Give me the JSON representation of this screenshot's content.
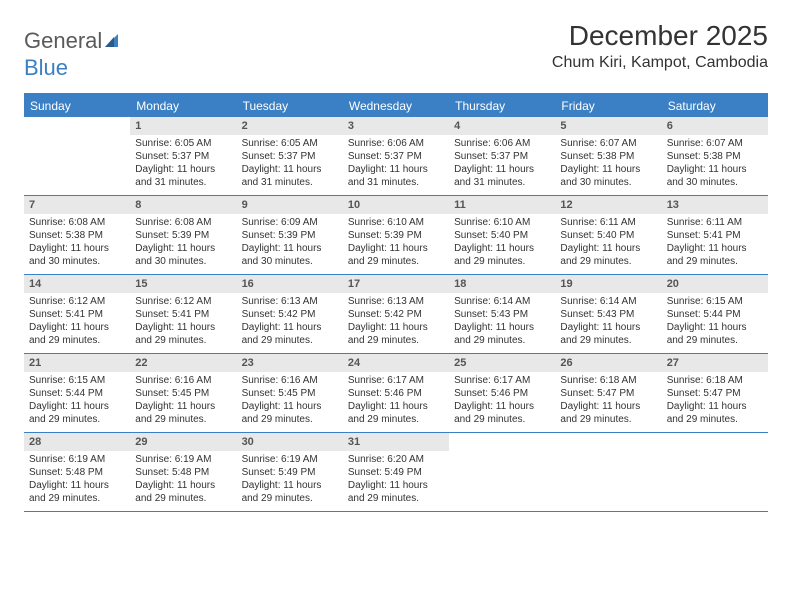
{
  "logo": {
    "text1": "General",
    "text2": "Blue"
  },
  "title": "December 2025",
  "location": "Chum Kiri, Kampot, Cambodia",
  "colors": {
    "accent": "#3b7fc4",
    "header_bg": "#3b7fc4",
    "daynum_bg": "#e8e8e8",
    "text": "#333333",
    "logo_gray": "#5a5a5a"
  },
  "day_names": [
    "Sunday",
    "Monday",
    "Tuesday",
    "Wednesday",
    "Thursday",
    "Friday",
    "Saturday"
  ],
  "first_weekday": 1,
  "num_days": 31,
  "days": {
    "1": {
      "sunrise": "6:05 AM",
      "sunset": "5:37 PM",
      "daylight": "11 hours and 31 minutes."
    },
    "2": {
      "sunrise": "6:05 AM",
      "sunset": "5:37 PM",
      "daylight": "11 hours and 31 minutes."
    },
    "3": {
      "sunrise": "6:06 AM",
      "sunset": "5:37 PM",
      "daylight": "11 hours and 31 minutes."
    },
    "4": {
      "sunrise": "6:06 AM",
      "sunset": "5:37 PM",
      "daylight": "11 hours and 31 minutes."
    },
    "5": {
      "sunrise": "6:07 AM",
      "sunset": "5:38 PM",
      "daylight": "11 hours and 30 minutes."
    },
    "6": {
      "sunrise": "6:07 AM",
      "sunset": "5:38 PM",
      "daylight": "11 hours and 30 minutes."
    },
    "7": {
      "sunrise": "6:08 AM",
      "sunset": "5:38 PM",
      "daylight": "11 hours and 30 minutes."
    },
    "8": {
      "sunrise": "6:08 AM",
      "sunset": "5:39 PM",
      "daylight": "11 hours and 30 minutes."
    },
    "9": {
      "sunrise": "6:09 AM",
      "sunset": "5:39 PM",
      "daylight": "11 hours and 30 minutes."
    },
    "10": {
      "sunrise": "6:10 AM",
      "sunset": "5:39 PM",
      "daylight": "11 hours and 29 minutes."
    },
    "11": {
      "sunrise": "6:10 AM",
      "sunset": "5:40 PM",
      "daylight": "11 hours and 29 minutes."
    },
    "12": {
      "sunrise": "6:11 AM",
      "sunset": "5:40 PM",
      "daylight": "11 hours and 29 minutes."
    },
    "13": {
      "sunrise": "6:11 AM",
      "sunset": "5:41 PM",
      "daylight": "11 hours and 29 minutes."
    },
    "14": {
      "sunrise": "6:12 AM",
      "sunset": "5:41 PM",
      "daylight": "11 hours and 29 minutes."
    },
    "15": {
      "sunrise": "6:12 AM",
      "sunset": "5:41 PM",
      "daylight": "11 hours and 29 minutes."
    },
    "16": {
      "sunrise": "6:13 AM",
      "sunset": "5:42 PM",
      "daylight": "11 hours and 29 minutes."
    },
    "17": {
      "sunrise": "6:13 AM",
      "sunset": "5:42 PM",
      "daylight": "11 hours and 29 minutes."
    },
    "18": {
      "sunrise": "6:14 AM",
      "sunset": "5:43 PM",
      "daylight": "11 hours and 29 minutes."
    },
    "19": {
      "sunrise": "6:14 AM",
      "sunset": "5:43 PM",
      "daylight": "11 hours and 29 minutes."
    },
    "20": {
      "sunrise": "6:15 AM",
      "sunset": "5:44 PM",
      "daylight": "11 hours and 29 minutes."
    },
    "21": {
      "sunrise": "6:15 AM",
      "sunset": "5:44 PM",
      "daylight": "11 hours and 29 minutes."
    },
    "22": {
      "sunrise": "6:16 AM",
      "sunset": "5:45 PM",
      "daylight": "11 hours and 29 minutes."
    },
    "23": {
      "sunrise": "6:16 AM",
      "sunset": "5:45 PM",
      "daylight": "11 hours and 29 minutes."
    },
    "24": {
      "sunrise": "6:17 AM",
      "sunset": "5:46 PM",
      "daylight": "11 hours and 29 minutes."
    },
    "25": {
      "sunrise": "6:17 AM",
      "sunset": "5:46 PM",
      "daylight": "11 hours and 29 minutes."
    },
    "26": {
      "sunrise": "6:18 AM",
      "sunset": "5:47 PM",
      "daylight": "11 hours and 29 minutes."
    },
    "27": {
      "sunrise": "6:18 AM",
      "sunset": "5:47 PM",
      "daylight": "11 hours and 29 minutes."
    },
    "28": {
      "sunrise": "6:19 AM",
      "sunset": "5:48 PM",
      "daylight": "11 hours and 29 minutes."
    },
    "29": {
      "sunrise": "6:19 AM",
      "sunset": "5:48 PM",
      "daylight": "11 hours and 29 minutes."
    },
    "30": {
      "sunrise": "6:19 AM",
      "sunset": "5:49 PM",
      "daylight": "11 hours and 29 minutes."
    },
    "31": {
      "sunrise": "6:20 AM",
      "sunset": "5:49 PM",
      "daylight": "11 hours and 29 minutes."
    }
  },
  "labels": {
    "sunrise": "Sunrise:",
    "sunset": "Sunset:",
    "daylight": "Daylight:"
  }
}
